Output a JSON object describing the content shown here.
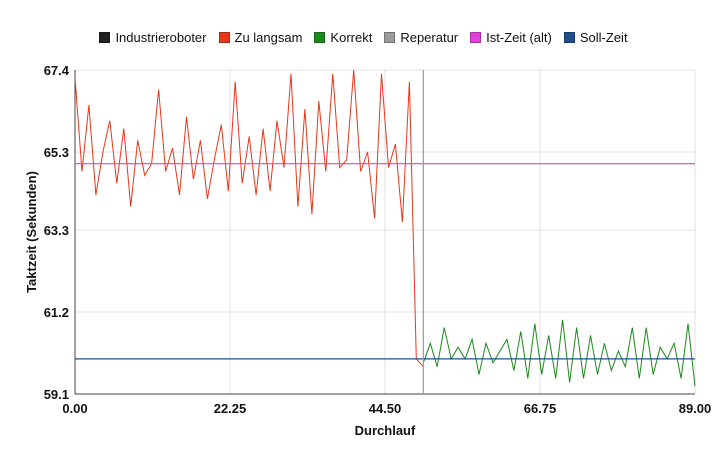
{
  "chart_data": {
    "type": "line",
    "title": "",
    "xlabel": "Durchlauf",
    "ylabel": "Taktzeit (Sekunden)",
    "xlim": [
      0,
      89
    ],
    "ylim": [
      59.1,
      67.4
    ],
    "x_ticks": [
      "0.00",
      "22.25",
      "44.50",
      "66.75",
      "89.00"
    ],
    "y_ticks": [
      "67.4",
      "65.3",
      "63.3",
      "61.2",
      "59.1"
    ],
    "grid": true,
    "legend_position": "top",
    "legend": [
      {
        "name": "Industrieroboter",
        "color": "#222222"
      },
      {
        "name": "Zu langsam",
        "color": "#e8371a"
      },
      {
        "name": "Korrekt",
        "color": "#1a8a1a"
      },
      {
        "name": "Reperatur",
        "color": "#9a9a9a"
      },
      {
        "name": "Ist-Zeit (alt)",
        "color": "#e040d8"
      },
      {
        "name": "Soll-Zeit",
        "color": "#1f4e8c"
      }
    ],
    "series": [
      {
        "name": "Zu langsam",
        "color": "#e8371a",
        "x": [
          0,
          1,
          2,
          3,
          4,
          5,
          6,
          7,
          8,
          9,
          10,
          11,
          12,
          13,
          14,
          15,
          16,
          17,
          18,
          19,
          20,
          21,
          22,
          23,
          24,
          25,
          26,
          27,
          28,
          29,
          30,
          31,
          32,
          33,
          34,
          35,
          36,
          37,
          38,
          39,
          40,
          41,
          42,
          43,
          44,
          45,
          46,
          47,
          48,
          49,
          50
        ],
        "y": [
          67.2,
          64.8,
          66.5,
          64.2,
          65.3,
          66.1,
          64.5,
          65.9,
          63.9,
          65.6,
          64.7,
          65.0,
          66.9,
          64.8,
          65.4,
          64.2,
          66.2,
          64.6,
          65.6,
          64.1,
          65.1,
          66.0,
          64.3,
          67.1,
          64.5,
          65.7,
          64.2,
          65.9,
          64.3,
          66.1,
          64.9,
          67.3,
          63.9,
          66.4,
          63.7,
          66.6,
          64.8,
          67.3,
          64.9,
          65.1,
          67.4,
          64.8,
          65.3,
          63.6,
          67.3,
          64.9,
          65.5,
          63.5,
          67.1,
          60.0,
          59.8
        ]
      },
      {
        "name": "Korrekt",
        "color": "#1a8a1a",
        "x": [
          50,
          51,
          52,
          53,
          54,
          55,
          56,
          57,
          58,
          59,
          60,
          61,
          62,
          63,
          64,
          65,
          66,
          67,
          68,
          69,
          70,
          71,
          72,
          73,
          74,
          75,
          76,
          77,
          78,
          79,
          80,
          81,
          82,
          83,
          84,
          85,
          86,
          87,
          88,
          89
        ],
        "y": [
          59.9,
          60.4,
          59.8,
          60.8,
          60.0,
          60.3,
          60.0,
          60.5,
          59.6,
          60.4,
          59.9,
          60.2,
          60.5,
          59.7,
          60.7,
          59.5,
          60.9,
          59.6,
          60.6,
          59.5,
          61.0,
          59.4,
          60.8,
          59.5,
          60.6,
          59.6,
          60.4,
          59.7,
          60.2,
          59.8,
          60.8,
          59.5,
          60.8,
          59.6,
          60.3,
          60.0,
          60.4,
          59.5,
          60.9,
          59.3
        ]
      },
      {
        "name": "Ist-Zeit (alt)",
        "color": "#e040d8",
        "type": "hline",
        "y": 65.0
      },
      {
        "name": "Soll-Zeit",
        "color": "#1f4e8c",
        "type": "hline",
        "y": 60.0
      },
      {
        "name": "Reperatur",
        "color": "#9a9a9a",
        "type": "vline",
        "x": 50
      }
    ]
  }
}
